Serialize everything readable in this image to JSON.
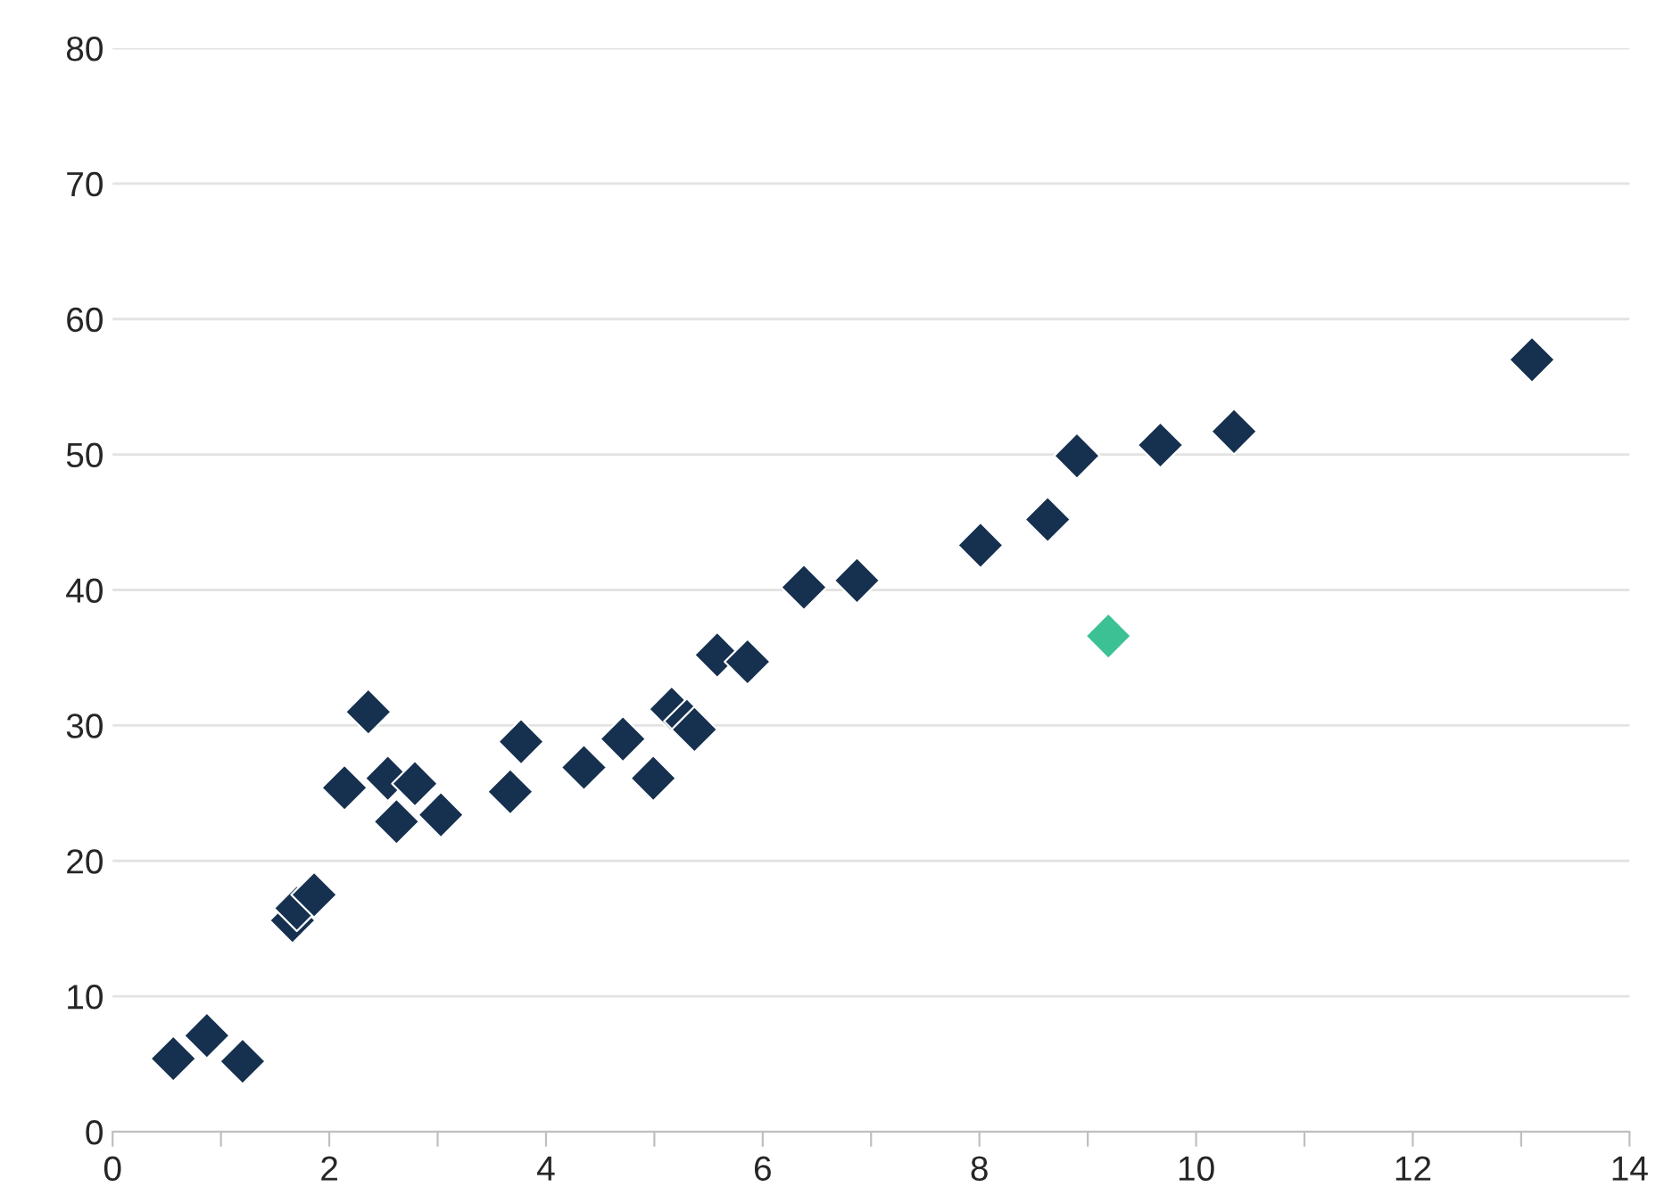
{
  "chart_data": {
    "type": "scatter",
    "marker": "diamond",
    "grid": "y",
    "xlim": [
      0,
      14
    ],
    "ylim": [
      0,
      80
    ],
    "xticks": [
      0,
      {
        "value": 1,
        "label": null
      },
      2,
      {
        "value": 3,
        "label": null
      },
      4,
      {
        "value": 5,
        "label": null
      },
      6,
      {
        "value": 7,
        "label": null
      },
      8,
      {
        "value": 9,
        "label": null
      },
      10,
      {
        "value": 11,
        "label": null
      },
      12,
      {
        "value": 13,
        "label": null
      },
      14
    ],
    "yticks": [
      0,
      10,
      20,
      30,
      40,
      50,
      60,
      70,
      80
    ],
    "series": [
      {
        "color": "#16304f",
        "x": [
          0.56,
          0.87,
          1.2,
          1.66,
          1.7,
          1.86,
          2.14,
          2.36,
          2.54,
          2.62,
          2.79,
          3.03,
          3.67,
          3.77,
          4.35,
          4.71,
          4.99,
          5.16,
          5.3,
          5.37,
          5.58,
          5.86,
          6.38,
          6.87,
          8.01,
          8.63,
          8.9,
          9.67,
          10.35,
          13.1
        ],
        "values": [
          5.4,
          7.1,
          5.2,
          15.6,
          16.5,
          17.5,
          25.4,
          31.0,
          26.1,
          22.9,
          25.7,
          23.4,
          25.1,
          28.8,
          26.9,
          29.0,
          26.1,
          31.2,
          30.3,
          29.7,
          35.2,
          34.7,
          40.2,
          40.7,
          43.3,
          45.2,
          49.9,
          50.7,
          51.7,
          57.0
        ]
      },
      {
        "color": "#3cc194",
        "x": [
          9.19
        ],
        "values": [
          36.6
        ]
      }
    ]
  }
}
